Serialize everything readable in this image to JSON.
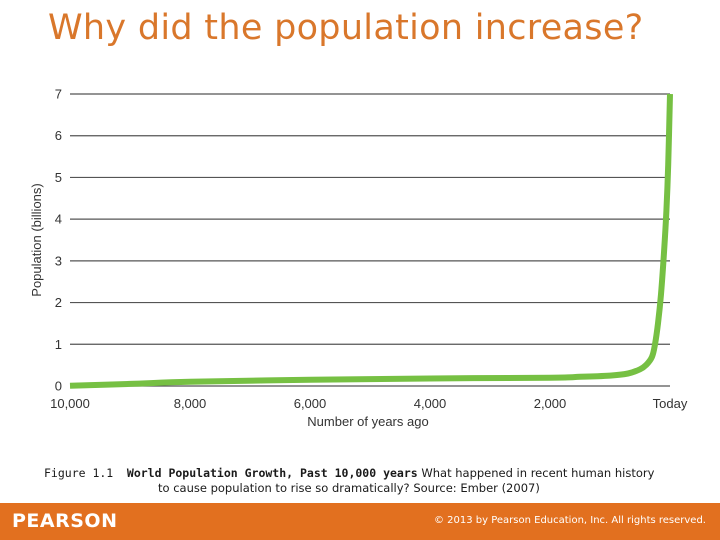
{
  "slide": {
    "title": "Why did the population increase?"
  },
  "caption": {
    "figure_label": "Figure 1.1",
    "figure_title": "World Population Growth, Past 10,000 years",
    "text_line1": "What happened in recent human history",
    "text_line2": "to cause population to rise so dramatically? Source: Ember (2007)"
  },
  "footer": {
    "brand": "PEARSON",
    "copyright": "© 2013 by Pearson Education, Inc. All rights reserved."
  },
  "colors": {
    "title": "#d9772b",
    "footer_bg": "#e2701f",
    "line": "#76c043",
    "grid": "#555555",
    "axis_text": "#333333"
  },
  "chart_data": {
    "type": "line",
    "title": "",
    "xlabel": "Number of years ago",
    "ylabel": "Population (billions)",
    "x_reversed": true,
    "xlim": [
      10000,
      0
    ],
    "ylim": [
      0,
      7
    ],
    "x_ticks": [
      10000,
      8000,
      6000,
      4000,
      2000,
      0
    ],
    "x_tick_labels": [
      "10,000",
      "8,000",
      "6,000",
      "4,000",
      "2,000",
      "Today"
    ],
    "y_ticks": [
      0,
      1,
      2,
      3,
      4,
      5,
      6,
      7
    ],
    "y_tick_labels": [
      "0",
      "1",
      "2",
      "3",
      "4",
      "5",
      "6",
      "7"
    ],
    "grid": "horizontal",
    "series": [
      {
        "x": [
          10000,
          9000,
          8000,
          6000,
          4000,
          2000,
          1500,
          1000,
          700,
          500,
          400,
          300,
          250,
          200,
          150,
          100,
          60,
          30,
          0
        ],
        "y": [
          0.005,
          0.05,
          0.1,
          0.15,
          0.18,
          0.2,
          0.22,
          0.25,
          0.3,
          0.4,
          0.5,
          0.7,
          1.0,
          1.5,
          2.2,
          3.2,
          4.2,
          5.3,
          7.0
        ]
      }
    ]
  }
}
